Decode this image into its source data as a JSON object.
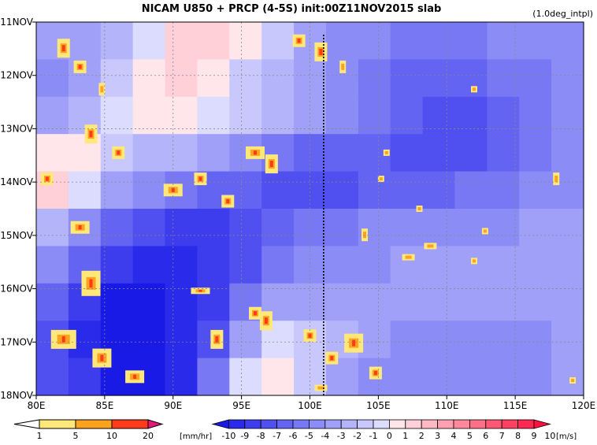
{
  "header": {
    "title": "NICAM   U850 + PRCP (4-5S) init:00Z11NOV2015 slab",
    "note": "(1.0deg_intpl)"
  },
  "chart_data": {
    "type": "heatmap",
    "title": "NICAM   U850 + PRCP (4-5S) init:00Z11NOV2015 slab",
    "xlabel": "",
    "ylabel": "",
    "xlim": [
      80,
      120
    ],
    "ylim_labels": [
      "11NOV",
      "18NOV"
    ],
    "grid": true,
    "x_ticks": [
      "80E",
      "85E",
      "90E",
      "95E",
      "100E",
      "105E",
      "110E",
      "115E",
      "120E"
    ],
    "y_ticks": [
      "11NOV",
      "12NOV",
      "13NOV",
      "14NOV",
      "15NOV",
      "16NOV",
      "17NOV",
      "18NOV"
    ],
    "reference_line_lon": 101,
    "u850_field_coarse_note": "",
    "u850_field": [
      [
        -3,
        -3,
        -2,
        0,
        2,
        2,
        1,
        -1,
        -3,
        -4,
        -4,
        -5,
        -5,
        -5,
        -4,
        -4,
        -4
      ],
      [
        -4,
        -3,
        -1,
        1,
        2,
        1,
        -1,
        -2,
        -3,
        -4,
        -5,
        -6,
        -6,
        -6,
        -5,
        -5,
        -4
      ],
      [
        -3,
        -2,
        0,
        1,
        1,
        0,
        -1,
        -2,
        -3,
        -4,
        -5,
        -6,
        -7,
        -7,
        -6,
        -5,
        -4
      ],
      [
        1,
        1,
        -1,
        -2,
        -2,
        -3,
        -4,
        -5,
        -6,
        -6,
        -6,
        -7,
        -7,
        -7,
        -6,
        -5,
        -4
      ],
      [
        2,
        0,
        -3,
        -4,
        -5,
        -6,
        -6,
        -7,
        -7,
        -7,
        -6,
        -6,
        -6,
        -5,
        -5,
        -4,
        -4
      ],
      [
        -2,
        -4,
        -6,
        -7,
        -8,
        -8,
        -7,
        -6,
        -5,
        -5,
        -4,
        -4,
        -4,
        -4,
        -4,
        -3,
        -3
      ],
      [
        -4,
        -6,
        -8,
        -9,
        -9,
        -8,
        -7,
        -5,
        -4,
        -4,
        -4,
        -3,
        -3,
        -3,
        -3,
        -3,
        -3
      ],
      [
        -6,
        -8,
        -10,
        -10,
        -9,
        -8,
        -5,
        -3,
        -3,
        -3,
        -3,
        -3,
        -3,
        -3,
        -3,
        -3,
        -3
      ],
      [
        -7,
        -9,
        -10,
        -10,
        -9,
        -7,
        -3,
        0,
        -1,
        -2,
        -3,
        -4,
        -4,
        -4,
        -4,
        -4,
        -3
      ],
      [
        -7,
        -8,
        -10,
        -10,
        -9,
        -5,
        0,
        1,
        -1,
        -3,
        -4,
        -4,
        -4,
        -4,
        -4,
        -4,
        -3
      ]
    ],
    "precip_legend": {
      "levels": [
        "1",
        "5",
        "10",
        "20"
      ],
      "unit": "[mm/hr]",
      "colors": [
        "#ffffff",
        "#ffe77a",
        "#ffa31f",
        "#ff3a1a",
        "#e8157a"
      ]
    },
    "u850_legend": {
      "levels": [
        "-10",
        "-9",
        "-8",
        "-7",
        "-6",
        "-5",
        "-4",
        "-3",
        "-2",
        "-1",
        "0",
        "1",
        "2",
        "3",
        "4",
        "5",
        "6",
        "7",
        "8",
        "9",
        "10"
      ],
      "unit": "[m/s]",
      "colors": [
        "#1a1ae6",
        "#2a2aeb",
        "#3d3dee",
        "#5050f0",
        "#6464f2",
        "#7878f4",
        "#8c8cf6",
        "#a0a0f8",
        "#b4b4fa",
        "#c8c8fc",
        "#dcdcfe",
        "#ffe6ea",
        "#ffd0d8",
        "#ffb8c4",
        "#ffa0b0",
        "#ff889c",
        "#ff7088",
        "#ff5874",
        "#ff4060",
        "#ff2850",
        "#ff1040"
      ]
    }
  }
}
